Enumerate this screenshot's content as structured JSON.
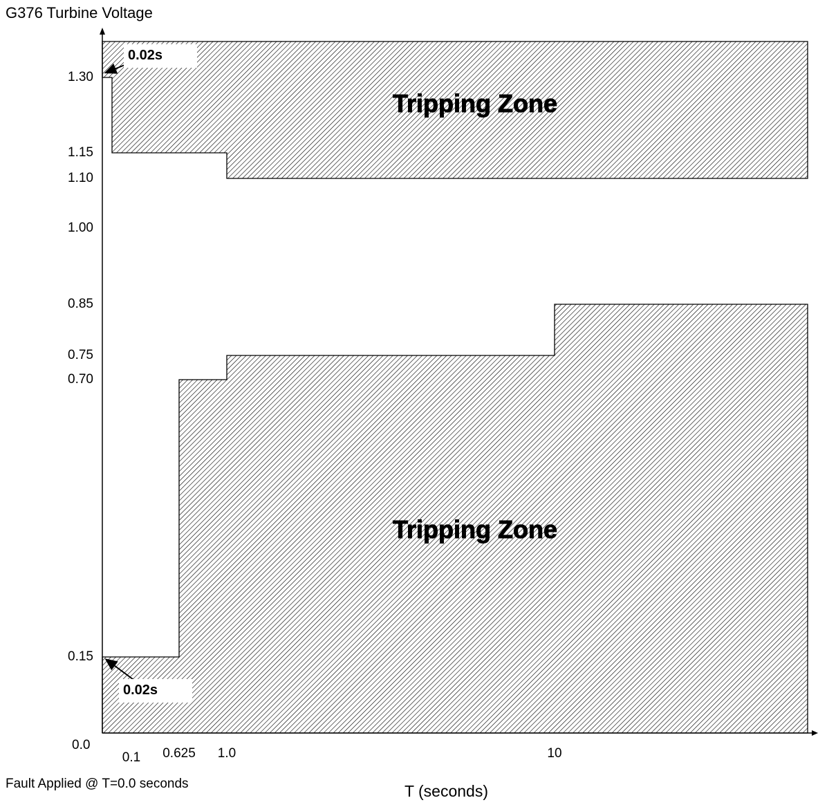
{
  "chart_data": {
    "type": "area",
    "title": "G376 Turbine Voltage",
    "xlabel": "T (seconds)",
    "ylabel": "",
    "note": "Fault Applied @ T=0.0 seconds",
    "y_ticks": [
      "1.30",
      "1.15",
      "1.10",
      "1.00",
      "0.85",
      "0.75",
      "0.70",
      "0.15",
      "0.0"
    ],
    "x_ticks": [
      "0.1",
      "0.625",
      "1.0",
      "10"
    ],
    "regions": [
      {
        "name": "Tripping Zone",
        "boundary": [
          {
            "t": 0.0,
            "v": 1.3
          },
          {
            "t": 0.02,
            "v": 1.3
          },
          {
            "t": 0.02,
            "v": 1.15
          },
          {
            "t": 1.0,
            "v": 1.15
          },
          {
            "t": 1.0,
            "v": 1.1
          }
        ]
      },
      {
        "name": "Tripping Zone",
        "boundary": [
          {
            "t": 0.0,
            "v": 0.15
          },
          {
            "t": 0.625,
            "v": 0.15
          },
          {
            "t": 0.625,
            "v": 0.7
          },
          {
            "t": 1.0,
            "v": 0.7
          },
          {
            "t": 1.0,
            "v": 0.75
          },
          {
            "t": 10,
            "v": 0.75
          },
          {
            "t": 10,
            "v": 0.85
          }
        ]
      }
    ],
    "annotations": [
      "0.02s",
      "0.02s"
    ]
  }
}
